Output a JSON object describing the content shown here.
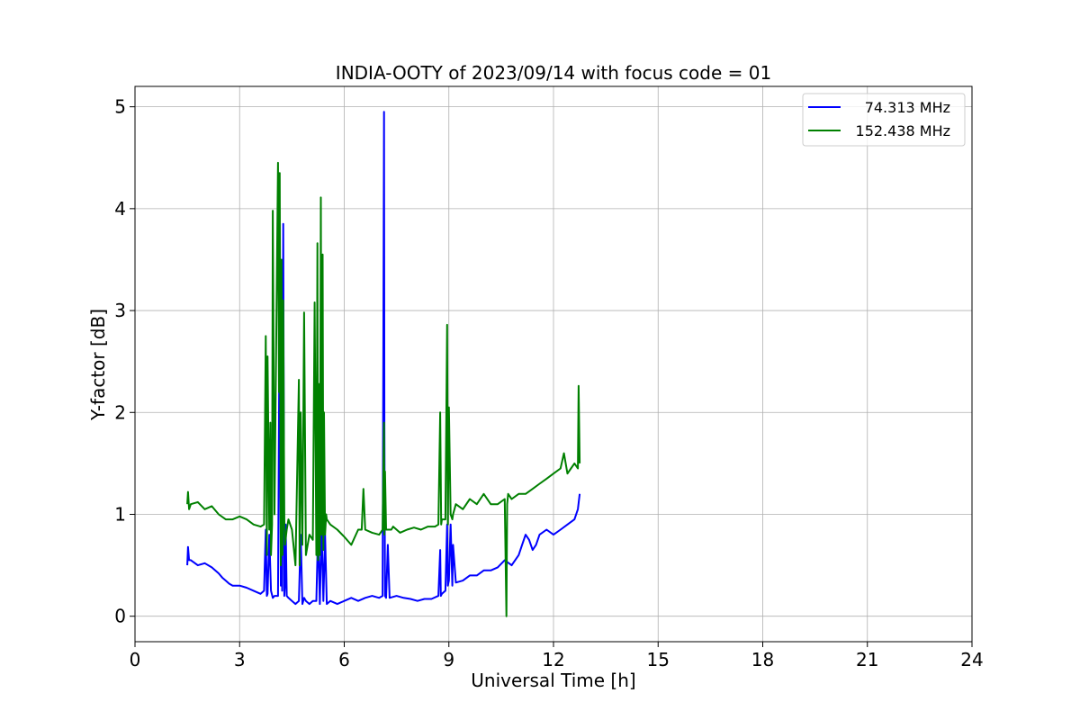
{
  "chart_data": {
    "type": "line",
    "title": "INDIA-OOTY of 2023/09/14 with focus code = 01",
    "xlabel": "Universal Time [h]",
    "ylabel": "Y-factor [dB]",
    "xlim": [
      0,
      24
    ],
    "ylim": [
      -0.25,
      5.2
    ],
    "xticks": [
      0,
      3,
      6,
      9,
      12,
      15,
      18,
      21,
      24
    ],
    "xtick_labels": [
      "0",
      "3",
      "6",
      "9",
      "12",
      "15",
      "18",
      "21",
      "24"
    ],
    "yticks": [
      0,
      1,
      2,
      3,
      4,
      5
    ],
    "ytick_labels": [
      "0",
      "1",
      "2",
      "3",
      "4",
      "5"
    ],
    "grid": true,
    "legend_position": "top-right",
    "series": [
      {
        "name": "74.313 MHz",
        "color": "#0000ff",
        "x": [
          1.5,
          1.52,
          1.55,
          1.6,
          1.8,
          2.0,
          2.2,
          2.4,
          2.5,
          2.6,
          2.7,
          2.8,
          3.0,
          3.2,
          3.4,
          3.6,
          3.7,
          3.75,
          3.78,
          3.8,
          3.85,
          3.9,
          3.95,
          4.0,
          4.1,
          4.15,
          4.18,
          4.2,
          4.22,
          4.25,
          4.28,
          4.3,
          4.32,
          4.35,
          4.4,
          4.5,
          4.6,
          4.7,
          4.75,
          4.8,
          4.85,
          4.9,
          5.0,
          5.1,
          5.2,
          5.25,
          5.3,
          5.35,
          5.4,
          5.45,
          5.5,
          5.6,
          5.8,
          6.0,
          6.2,
          6.4,
          6.6,
          6.8,
          7.0,
          7.1,
          7.14,
          7.15,
          7.17,
          7.2,
          7.25,
          7.3,
          7.5,
          7.7,
          7.9,
          8.1,
          8.3,
          8.5,
          8.7,
          8.75,
          8.77,
          8.8,
          8.9,
          8.95,
          8.97,
          9.0,
          9.05,
          9.1,
          9.12,
          9.2,
          9.4,
          9.6,
          9.8,
          10.0,
          10.2,
          10.4,
          10.6,
          10.8,
          10.9,
          11.0,
          11.1,
          11.2,
          11.3,
          11.4,
          11.5,
          11.6,
          11.8,
          12.0,
          12.2,
          12.4,
          12.6,
          12.7,
          12.75
        ],
        "y": [
          0.5,
          0.68,
          0.55,
          0.55,
          0.5,
          0.52,
          0.48,
          0.42,
          0.38,
          0.35,
          0.32,
          0.3,
          0.3,
          0.28,
          0.25,
          0.22,
          0.25,
          0.85,
          0.2,
          0.22,
          0.8,
          0.25,
          0.18,
          0.2,
          0.2,
          3.3,
          0.3,
          2.8,
          0.25,
          3.85,
          0.2,
          0.3,
          0.9,
          0.2,
          0.18,
          0.15,
          0.12,
          0.15,
          0.8,
          0.12,
          0.18,
          0.15,
          0.12,
          0.15,
          0.15,
          0.85,
          0.12,
          0.9,
          0.15,
          0.8,
          0.12,
          0.15,
          0.12,
          0.15,
          0.18,
          0.15,
          0.18,
          0.2,
          0.18,
          0.2,
          4.95,
          1.9,
          0.2,
          0.18,
          0.7,
          0.18,
          0.2,
          0.18,
          0.17,
          0.15,
          0.17,
          0.17,
          0.2,
          0.65,
          0.2,
          0.22,
          0.25,
          0.9,
          0.3,
          0.35,
          0.9,
          0.3,
          0.7,
          0.33,
          0.35,
          0.4,
          0.4,
          0.45,
          0.45,
          0.48,
          0.55,
          0.5,
          0.55,
          0.6,
          0.7,
          0.8,
          0.75,
          0.65,
          0.7,
          0.8,
          0.85,
          0.8,
          0.85,
          0.9,
          0.95,
          1.05,
          1.2
        ]
      },
      {
        "name": "152.438 MHz",
        "color": "#008000",
        "x": [
          1.5,
          1.52,
          1.55,
          1.6,
          1.8,
          2.0,
          2.2,
          2.4,
          2.6,
          2.8,
          3.0,
          3.2,
          3.4,
          3.6,
          3.7,
          3.75,
          3.78,
          3.8,
          3.85,
          3.88,
          3.9,
          3.93,
          3.95,
          4.0,
          4.1,
          4.13,
          4.15,
          4.18,
          4.2,
          4.23,
          4.25,
          4.28,
          4.3,
          4.35,
          4.4,
          4.5,
          4.6,
          4.7,
          4.72,
          4.75,
          4.8,
          4.85,
          4.9,
          5.0,
          5.1,
          5.15,
          5.2,
          5.23,
          5.25,
          5.28,
          5.3,
          5.33,
          5.35,
          5.38,
          5.4,
          5.42,
          5.45,
          5.48,
          5.5,
          5.6,
          5.8,
          6.0,
          6.2,
          6.4,
          6.5,
          6.55,
          6.6,
          6.8,
          7.0,
          7.1,
          7.14,
          7.15,
          7.17,
          7.2,
          7.3,
          7.35,
          7.4,
          7.6,
          7.8,
          8.0,
          8.2,
          8.4,
          8.6,
          8.7,
          8.75,
          8.78,
          8.8,
          8.9,
          8.95,
          8.97,
          9.0,
          9.05,
          9.1,
          9.12,
          9.2,
          9.4,
          9.6,
          9.8,
          10.0,
          10.2,
          10.4,
          10.6,
          10.65,
          10.67,
          10.7,
          10.8,
          11.0,
          11.2,
          11.4,
          11.6,
          11.8,
          12.0,
          12.2,
          12.3,
          12.4,
          12.5,
          12.6,
          12.7,
          12.72,
          12.75
        ],
        "y": [
          1.1,
          1.22,
          1.05,
          1.1,
          1.12,
          1.05,
          1.08,
          1.0,
          0.95,
          0.95,
          0.98,
          0.95,
          0.9,
          0.88,
          0.9,
          2.75,
          0.6,
          2.55,
          0.85,
          1.9,
          0.6,
          0.9,
          3.98,
          1.0,
          4.45,
          2.2,
          4.35,
          0.5,
          3.5,
          0.6,
          3.1,
          0.95,
          0.7,
          0.85,
          0.95,
          0.85,
          0.5,
          2.32,
          0.5,
          2.0,
          0.7,
          2.98,
          0.6,
          0.8,
          0.75,
          3.08,
          0.6,
          3.66,
          0.55,
          2.28,
          0.6,
          4.11,
          0.8,
          3.55,
          0.65,
          2.0,
          0.8,
          1.0,
          0.95,
          0.9,
          0.85,
          0.78,
          0.7,
          0.85,
          0.85,
          1.25,
          0.85,
          0.82,
          0.8,
          0.85,
          1.9,
          0.8,
          1.42,
          0.85,
          0.85,
          0.85,
          0.88,
          0.82,
          0.85,
          0.87,
          0.85,
          0.88,
          0.88,
          0.9,
          2.0,
          0.9,
          0.95,
          0.95,
          2.86,
          0.9,
          2.05,
          1.0,
          0.95,
          1.0,
          1.1,
          1.05,
          1.15,
          1.1,
          1.2,
          1.1,
          1.1,
          1.15,
          0.0,
          1.1,
          1.2,
          1.15,
          1.2,
          1.2,
          1.25,
          1.3,
          1.35,
          1.4,
          1.45,
          1.6,
          1.4,
          1.45,
          1.5,
          1.45,
          2.26,
          1.5
        ]
      }
    ]
  }
}
